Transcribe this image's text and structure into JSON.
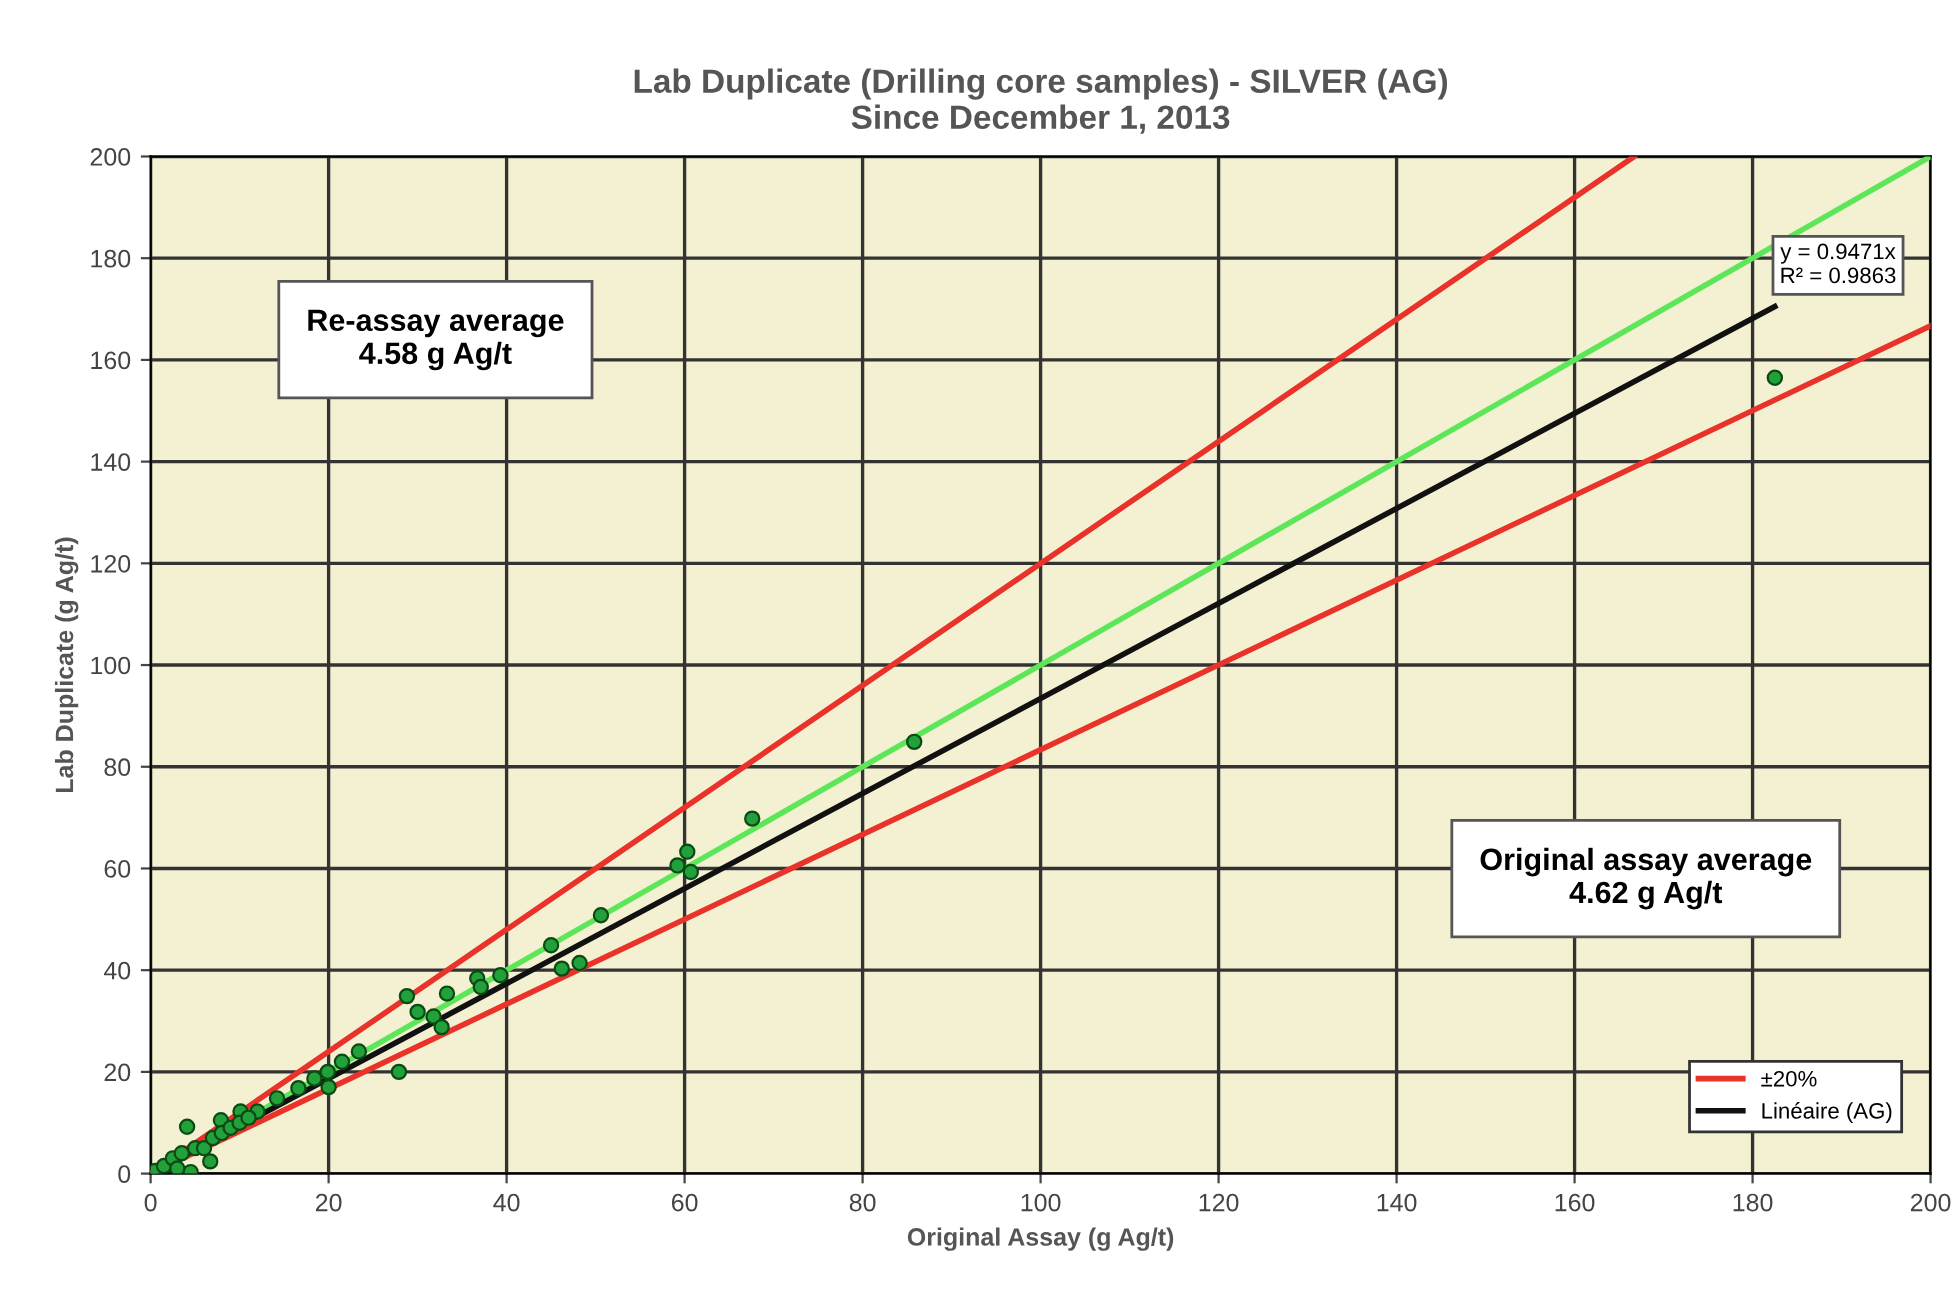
{
  "chart_data": {
    "type": "scatter",
    "title": "Lab Duplicate (Drilling core samples) - SILVER (AG)\nSince December 1, 2013",
    "xlabel": "Original Assay (g Ag/t)",
    "ylabel": "Lab Duplicate (g Ag/t)",
    "xlim": [
      0,
      200
    ],
    "ylim": [
      0,
      200
    ],
    "xticks": [
      0,
      20,
      40,
      60,
      80,
      100,
      120,
      140,
      160,
      180,
      200
    ],
    "yticks": [
      0,
      20,
      40,
      60,
      80,
      100,
      120,
      140,
      160,
      180,
      200
    ],
    "grid": true,
    "legend": "bottom right",
    "annotations": [
      "Re-assay average\n4.58 g Ag/t",
      "Original assay average\n4.62 g Ag/t",
      "y = 0.9471x\nR² = 0.9863"
    ],
    "series": [
      {
        "type": "line",
        "name": "±20%",
        "color": "#e8322a",
        "x": [
          0,
          166.7
        ],
        "values": [
          0,
          200
        ]
      },
      {
        "type": "line",
        "color": "#e8322a",
        "x": [
          0,
          200
        ],
        "values": [
          0,
          166.7
        ]
      },
      {
        "type": "line",
        "color": "#5ee65a",
        "x": [
          0,
          200
        ],
        "values": [
          0,
          200
        ]
      },
      {
        "type": "line",
        "name": "Linéaire (AG)",
        "color": "#111111",
        "x": [
          0,
          182.5
        ],
        "values": [
          0,
          170.5
        ]
      },
      {
        "color": "#22a03a",
        "marker": "circle",
        "x": [
          182.5,
          85.8,
          67.6,
          60.3,
          59.2,
          60.7,
          50.6,
          45,
          46.2,
          48.2,
          39.3,
          36.7,
          37.1,
          33.3,
          28.8,
          30,
          31.8,
          32.7,
          27.9,
          23.4,
          21.5,
          19.9,
          20,
          18.4,
          16.6,
          14.2,
          12,
          10.1,
          7.9,
          4.1,
          6.7,
          4.5,
          0.5,
          1.5,
          2.5,
          3.5,
          5,
          6,
          7,
          8,
          9,
          10,
          11,
          3
        ],
        "values": [
          156.5,
          84.9,
          69.8,
          63.3,
          60.6,
          59.3,
          50.8,
          44.9,
          40.3,
          41.4,
          39,
          38.4,
          36.7,
          35.4,
          34.9,
          31.8,
          30.9,
          28.8,
          20,
          24,
          22,
          20,
          17,
          18.7,
          16.8,
          14.8,
          12.2,
          12.2,
          10.5,
          9.2,
          2.4,
          0.3,
          0.5,
          1.5,
          3,
          4,
          5,
          5,
          7,
          8,
          9,
          10,
          11,
          1
        ]
      }
    ]
  }
}
